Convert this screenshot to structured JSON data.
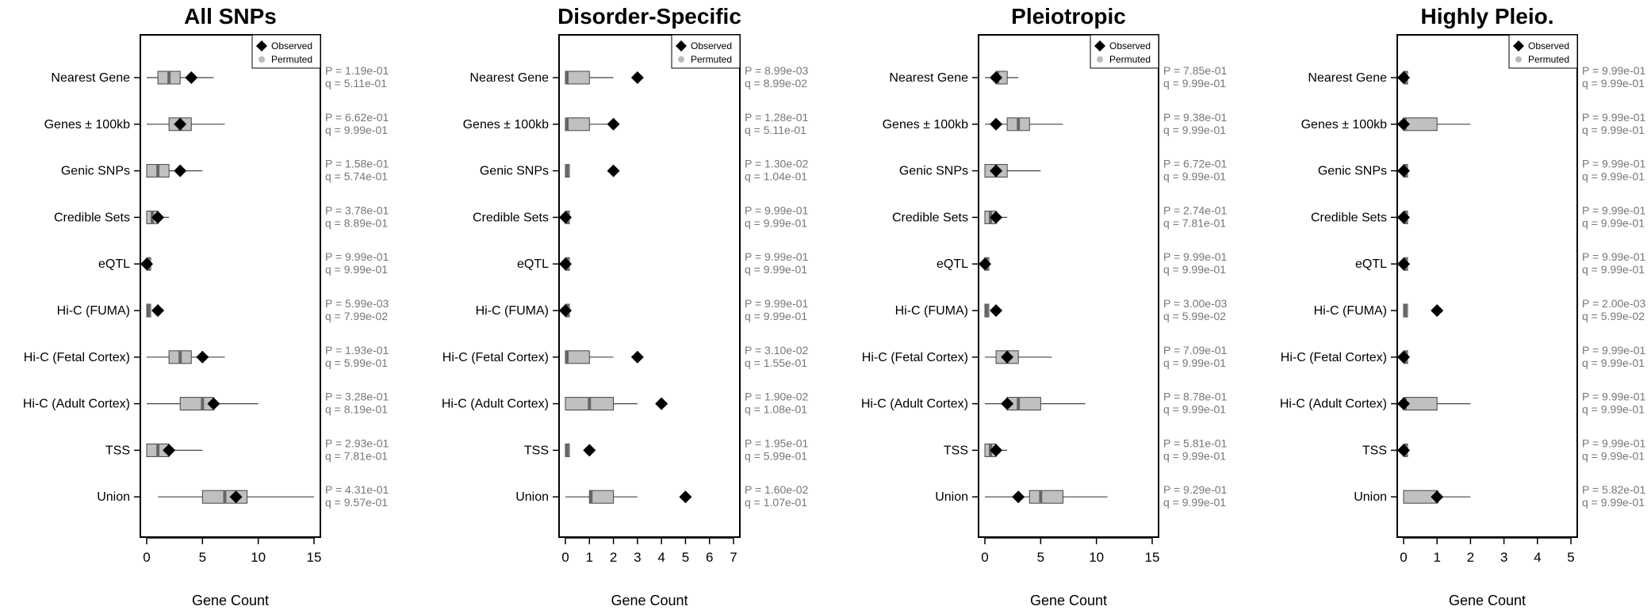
{
  "legend": {
    "observed_label": "Observed",
    "permuted_label": "Permuted"
  },
  "chart_data": [
    {
      "type": "boxplot",
      "title": "All SNPs",
      "xlabel": "Gene Count",
      "ylabel": "",
      "xlim": [
        0,
        15
      ],
      "xticks": [
        0,
        5,
        10,
        15
      ],
      "legend_position": "top-right",
      "categories": [
        "Nearest Gene",
        "Genes ± 100kb",
        "Genic SNPs",
        "Credible Sets",
        "eQTL",
        "Hi-C (FUMA)",
        "Hi-C (Fetal Cortex)",
        "Hi-C (Adult Cortex)",
        "TSS",
        "Union"
      ],
      "observed": [
        4,
        3,
        3,
        1,
        0,
        1,
        5,
        6,
        2,
        8
      ],
      "permuted": [
        {
          "min": 0,
          "q1": 1,
          "median": 2,
          "q3": 3,
          "max": 6
        },
        {
          "min": 0,
          "q1": 2,
          "median": 3,
          "q3": 4,
          "max": 7
        },
        {
          "min": 0,
          "q1": 0,
          "median": 1,
          "q3": 2,
          "max": 5
        },
        {
          "min": 0,
          "q1": 0,
          "median": 0.5,
          "q3": 1,
          "max": 2
        },
        {
          "min": 0,
          "q1": 0,
          "median": 0,
          "q3": 0,
          "max": 0
        },
        {
          "min": 0,
          "q1": 0,
          "median": 0,
          "q3": 0.2,
          "max": 0.2
        },
        {
          "min": 0,
          "q1": 2,
          "median": 3,
          "q3": 4,
          "max": 7
        },
        {
          "min": 0,
          "q1": 3,
          "median": 5,
          "q3": 6,
          "max": 10
        },
        {
          "min": 0,
          "q1": 0,
          "median": 1,
          "q3": 2,
          "max": 5
        },
        {
          "min": 1,
          "q1": 5,
          "median": 7,
          "q3": 9,
          "max": 15
        }
      ],
      "p_values": [
        "P = 1.19e-01",
        "P = 6.62e-01",
        "P = 1.58e-01",
        "P = 3.78e-01",
        "P = 9.99e-01",
        "P = 5.99e-03",
        "P = 1.93e-01",
        "P = 3.28e-01",
        "P = 2.93e-01",
        "P = 4.31e-01"
      ],
      "q_values": [
        "q = 5.11e-01",
        "q = 9.99e-01",
        "q = 5.74e-01",
        "q = 8.89e-01",
        "q = 9.99e-01",
        "q = 7.99e-02",
        "q = 5.99e-01",
        "q = 8.19e-01",
        "q = 7.81e-01",
        "q = 9.57e-01"
      ]
    },
    {
      "type": "boxplot",
      "title": "Disorder-Specific",
      "xlabel": "Gene Count",
      "ylabel": "",
      "xlim": [
        0,
        7
      ],
      "xticks": [
        0,
        1,
        2,
        3,
        4,
        5,
        6,
        7
      ],
      "legend_position": "top-right",
      "categories": [
        "Nearest Gene",
        "Genes ± 100kb",
        "Genic SNPs",
        "Credible Sets",
        "eQTL",
        "Hi-C (FUMA)",
        "Hi-C (Fetal Cortex)",
        "Hi-C (Adult Cortex)",
        "TSS",
        "Union"
      ],
      "observed": [
        3,
        2,
        2,
        0,
        0,
        0,
        3,
        4,
        1,
        5
      ],
      "permuted": [
        {
          "min": 0,
          "q1": 0,
          "median": 0,
          "q3": 1,
          "max": 2
        },
        {
          "min": 0,
          "q1": 0,
          "median": 0,
          "q3": 1,
          "max": 2
        },
        {
          "min": 0,
          "q1": 0,
          "median": 0,
          "q3": 0.1,
          "max": 0.1
        },
        {
          "min": 0,
          "q1": 0,
          "median": 0,
          "q3": 0,
          "max": 0
        },
        {
          "min": 0,
          "q1": 0,
          "median": 0,
          "q3": 0,
          "max": 0
        },
        {
          "min": 0,
          "q1": 0,
          "median": 0,
          "q3": 0,
          "max": 0
        },
        {
          "min": 0,
          "q1": 0,
          "median": 0,
          "q3": 1,
          "max": 2
        },
        {
          "min": 0,
          "q1": 0,
          "median": 1,
          "q3": 2,
          "max": 3
        },
        {
          "min": 0,
          "q1": 0,
          "median": 0,
          "q3": 0.1,
          "max": 0.1
        },
        {
          "min": 0,
          "q1": 1,
          "median": 1,
          "q3": 2,
          "max": 3
        }
      ],
      "p_values": [
        "P = 8.99e-03",
        "P = 1.28e-01",
        "P = 1.30e-02",
        "P = 9.99e-01",
        "P = 9.99e-01",
        "P = 9.99e-01",
        "P = 3.10e-02",
        "P = 1.90e-02",
        "P = 1.95e-01",
        "P = 1.60e-02"
      ],
      "q_values": [
        "q = 8.99e-02",
        "q = 5.11e-01",
        "q = 1.04e-01",
        "q = 9.99e-01",
        "q = 9.99e-01",
        "q = 9.99e-01",
        "q = 1.55e-01",
        "q = 1.08e-01",
        "q = 5.99e-01",
        "q = 1.07e-01"
      ]
    },
    {
      "type": "boxplot",
      "title": "Pleiotropic",
      "xlabel": "Gene Count",
      "ylabel": "",
      "xlim": [
        0,
        15
      ],
      "xticks": [
        0,
        5,
        10,
        15
      ],
      "legend_position": "top-right",
      "categories": [
        "Nearest Gene",
        "Genes ± 100kb",
        "Genic SNPs",
        "Credible Sets",
        "eQTL",
        "Hi-C (FUMA)",
        "Hi-C (Fetal Cortex)",
        "Hi-C (Adult Cortex)",
        "TSS",
        "Union"
      ],
      "observed": [
        1,
        1,
        1,
        1,
        0,
        1,
        2,
        2,
        1,
        3
      ],
      "permuted": [
        {
          "min": 0,
          "q1": 1,
          "median": 1,
          "q3": 2,
          "max": 3
        },
        {
          "min": 0,
          "q1": 2,
          "median": 3,
          "q3": 4,
          "max": 7
        },
        {
          "min": 0,
          "q1": 0,
          "median": 1,
          "q3": 2,
          "max": 5
        },
        {
          "min": 0,
          "q1": 0,
          "median": 0.5,
          "q3": 1,
          "max": 2
        },
        {
          "min": 0,
          "q1": 0,
          "median": 0,
          "q3": 0,
          "max": 0
        },
        {
          "min": 0,
          "q1": 0,
          "median": 0,
          "q3": 0.2,
          "max": 0.2
        },
        {
          "min": 0,
          "q1": 1,
          "median": 2,
          "q3": 3,
          "max": 6
        },
        {
          "min": 0,
          "q1": 2,
          "median": 3,
          "q3": 5,
          "max": 9
        },
        {
          "min": 0,
          "q1": 0,
          "median": 0.5,
          "q3": 1,
          "max": 2
        },
        {
          "min": 0,
          "q1": 4,
          "median": 5,
          "q3": 7,
          "max": 11
        }
      ],
      "p_values": [
        "P = 7.85e-01",
        "P = 9.38e-01",
        "P = 6.72e-01",
        "P = 2.74e-01",
        "P = 9.99e-01",
        "P = 3.00e-03",
        "P = 7.09e-01",
        "P = 8.78e-01",
        "P = 5.81e-01",
        "P = 9.29e-01"
      ],
      "q_values": [
        "q = 9.99e-01",
        "q = 9.99e-01",
        "q = 9.99e-01",
        "q = 7.81e-01",
        "q = 9.99e-01",
        "q = 5.99e-02",
        "q = 9.99e-01",
        "q = 9.99e-01",
        "q = 9.99e-01",
        "q = 9.99e-01"
      ]
    },
    {
      "type": "boxplot",
      "title": "Highly Pleio.",
      "xlabel": "Gene Count",
      "ylabel": "",
      "xlim": [
        0,
        5
      ],
      "xticks": [
        0,
        1,
        2,
        3,
        4,
        5
      ],
      "legend_position": "top-right",
      "categories": [
        "Nearest Gene",
        "Genes ± 100kb",
        "Genic SNPs",
        "Credible Sets",
        "eQTL",
        "Hi-C (FUMA)",
        "Hi-C (Fetal Cortex)",
        "Hi-C (Adult Cortex)",
        "TSS",
        "Union"
      ],
      "observed": [
        0,
        0,
        0,
        0,
        0,
        1,
        0,
        0,
        0,
        1
      ],
      "permuted": [
        {
          "min": 0,
          "q1": 0,
          "median": 0,
          "q3": 0,
          "max": 0
        },
        {
          "min": 0,
          "q1": 0,
          "median": 0,
          "q3": 1,
          "max": 2
        },
        {
          "min": 0,
          "q1": 0,
          "median": 0,
          "q3": 0,
          "max": 0
        },
        {
          "min": 0,
          "q1": 0,
          "median": 0,
          "q3": 0,
          "max": 0
        },
        {
          "min": 0,
          "q1": 0,
          "median": 0,
          "q3": 0,
          "max": 0
        },
        {
          "min": 0,
          "q1": 0,
          "median": 0,
          "q3": 0.05,
          "max": 0.05
        },
        {
          "min": 0,
          "q1": 0,
          "median": 0,
          "q3": 0,
          "max": 0
        },
        {
          "min": 0,
          "q1": 0,
          "median": 0,
          "q3": 1,
          "max": 2
        },
        {
          "min": 0,
          "q1": 0,
          "median": 0,
          "q3": 0,
          "max": 0
        },
        {
          "min": 0,
          "q1": 0,
          "median": 1,
          "q3": 1,
          "max": 2
        }
      ],
      "p_values": [
        "P = 9.99e-01",
        "P = 9.99e-01",
        "P = 9.99e-01",
        "P = 9.99e-01",
        "P = 9.99e-01",
        "P = 2.00e-03",
        "P = 9.99e-01",
        "P = 9.99e-01",
        "P = 9.99e-01",
        "P = 5.82e-01"
      ],
      "q_values": [
        "q = 9.99e-01",
        "q = 9.99e-01",
        "q = 9.99e-01",
        "q = 9.99e-01",
        "q = 9.99e-01",
        "q = 5.99e-02",
        "q = 9.99e-01",
        "q = 9.99e-01",
        "q = 9.99e-01",
        "q = 9.99e-01"
      ]
    }
  ]
}
